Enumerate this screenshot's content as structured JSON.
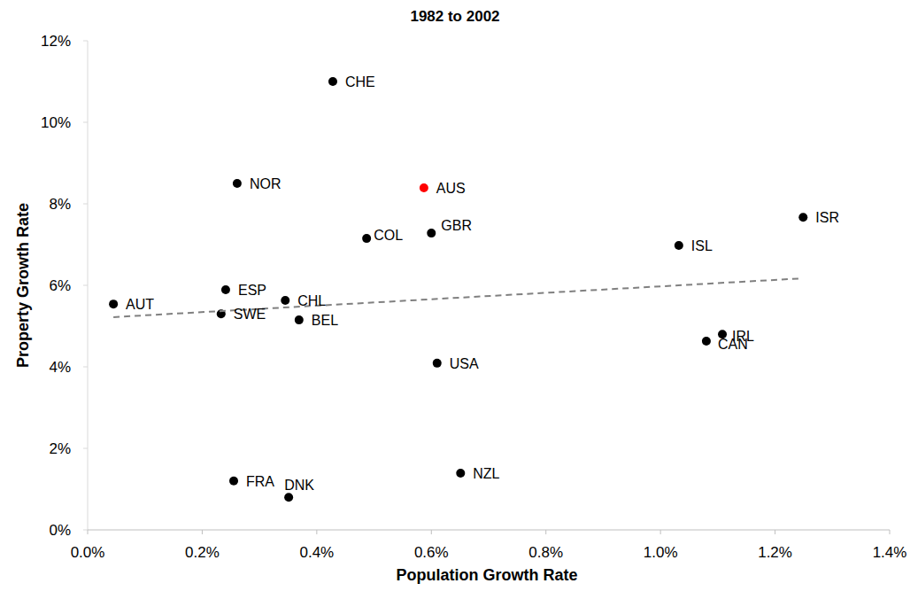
{
  "chart_data": {
    "type": "scatter",
    "title": "1982 to 2002",
    "x_label": "Population Growth Rate",
    "y_label": "Property Growth Rate",
    "xlim": [
      0,
      1.4
    ],
    "ylim": [
      0,
      12
    ],
    "xticks": [
      {
        "value": 0,
        "label": "0.0%"
      },
      {
        "value": 0.2,
        "label": "0.2%"
      },
      {
        "value": 0.4,
        "label": "0.4%"
      },
      {
        "value": 0.6,
        "label": "0.6%"
      },
      {
        "value": 0.8,
        "label": "0.8%"
      },
      {
        "value": 1.0,
        "label": "1.0%"
      },
      {
        "value": 1.2,
        "label": "1.2%"
      },
      {
        "value": 1.4,
        "label": "1.4%"
      }
    ],
    "yticks": [
      {
        "value": 0,
        "label": "0%"
      },
      {
        "value": 2,
        "label": "2%"
      },
      {
        "value": 4,
        "label": "4%"
      },
      {
        "value": 6,
        "label": "6%"
      },
      {
        "value": 8,
        "label": "8%"
      },
      {
        "value": 10,
        "label": "10%"
      },
      {
        "value": 12,
        "label": "12%"
      }
    ],
    "grid": false,
    "series": [
      {
        "type": "scatter",
        "marker": "circle",
        "labels": [
          "CHE",
          "NOR",
          "AUS",
          "COL",
          "GBR",
          "ISL",
          "ISR",
          "ESP",
          "AUT",
          "CHL",
          "SWE",
          "BEL",
          "IRL",
          "CAN",
          "USA",
          "FRA",
          "DNK",
          "NZL"
        ],
        "x": [
          0.428,
          0.261,
          0.587,
          0.487,
          0.6,
          1.032,
          1.249,
          0.241,
          0.045,
          0.345,
          0.233,
          0.369,
          1.108,
          1.08,
          0.61,
          0.255,
          0.351,
          0.651
        ],
        "values": [
          11.0,
          8.5,
          8.39,
          7.15,
          7.28,
          6.98,
          7.67,
          5.89,
          5.54,
          5.63,
          5.3,
          5.15,
          4.8,
          4.63,
          4.09,
          1.2,
          0.8,
          1.39
        ],
        "colors": [
          "#000000",
          "#000000",
          "#ff0000",
          "#000000",
          "#000000",
          "#000000",
          "#000000",
          "#000000",
          "#000000",
          "#000000",
          "#000000",
          "#000000",
          "#000000",
          "#000000",
          "#000000",
          "#000000",
          "#000000",
          "#000000"
        ]
      },
      {
        "type": "line",
        "line_style": "dashed",
        "color": "#808080",
        "x": [
          0.045,
          1.247
        ],
        "values": [
          5.22,
          6.17
        ]
      }
    ]
  }
}
